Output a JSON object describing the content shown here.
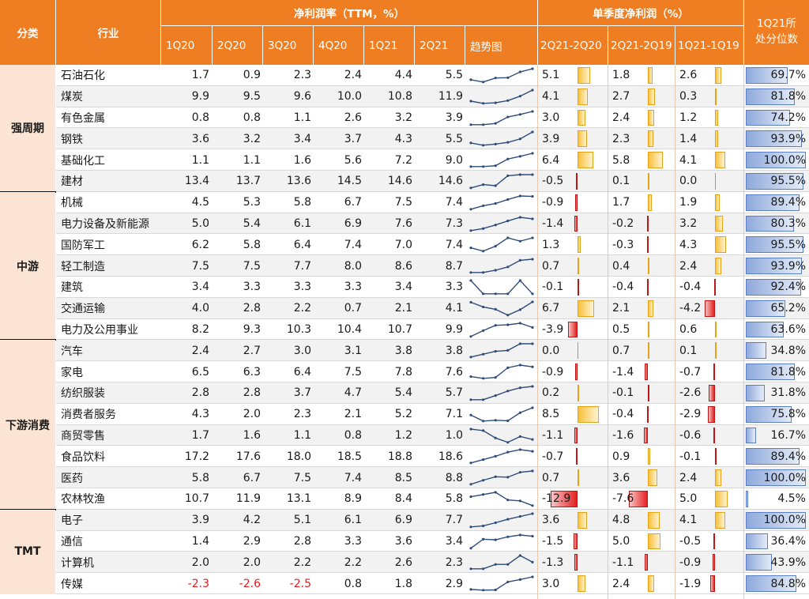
{
  "header": {
    "category": "分类",
    "industry": "行业",
    "group_ttm": "净利润率（TTM，%）",
    "group_quarter": "单季度净利润（%）",
    "quarters": [
      "1Q20",
      "2Q20",
      "3Q20",
      "4Q20",
      "1Q21",
      "2Q21"
    ],
    "trend": "趋势图",
    "comparisons": [
      "2Q21-2Q20",
      "2Q21-2Q19",
      "1Q21-1Q19"
    ],
    "percentile_line1": "1Q21所",
    "percentile_line2": "处分位数"
  },
  "categories": [
    {
      "name": "强周期",
      "rows": 6
    },
    {
      "name": "中游",
      "rows": 7
    },
    {
      "name": "下游消费",
      "rows": 8
    },
    {
      "name": "TMT",
      "rows": 4
    }
  ],
  "rows": [
    {
      "industry": "石油石化",
      "ttm": [
        "1.7",
        "0.9",
        "2.3",
        "2.4",
        "4.4",
        "5.5"
      ],
      "cmp": [
        "5.1",
        "1.8",
        "2.6"
      ],
      "pct": "69.7%"
    },
    {
      "industry": "煤炭",
      "ttm": [
        "9.9",
        "9.5",
        "9.6",
        "10.0",
        "10.8",
        "11.9"
      ],
      "cmp": [
        "4.1",
        "2.7",
        "0.3"
      ],
      "pct": "81.8%"
    },
    {
      "industry": "有色金属",
      "ttm": [
        "0.8",
        "0.8",
        "1.1",
        "2.6",
        "3.2",
        "3.9"
      ],
      "cmp": [
        "3.0",
        "2.4",
        "1.2"
      ],
      "pct": "74.2%"
    },
    {
      "industry": "钢铁",
      "ttm": [
        "3.6",
        "3.2",
        "3.4",
        "3.7",
        "4.3",
        "5.5"
      ],
      "cmp": [
        "3.9",
        "2.3",
        "1.4"
      ],
      "pct": "93.9%"
    },
    {
      "industry": "基础化工",
      "ttm": [
        "1.1",
        "1.1",
        "1.6",
        "5.6",
        "7.2",
        "9.0"
      ],
      "cmp": [
        "6.4",
        "5.8",
        "4.1"
      ],
      "pct": "100.0%"
    },
    {
      "industry": "建材",
      "ttm": [
        "13.4",
        "13.7",
        "13.6",
        "14.5",
        "14.6",
        "14.6"
      ],
      "cmp": [
        "-0.5",
        "0.1",
        "0.0"
      ],
      "pct": "95.5%"
    },
    {
      "industry": "机械",
      "ttm": [
        "4.5",
        "5.3",
        "5.8",
        "6.7",
        "7.5",
        "7.4"
      ],
      "cmp": [
        "-0.9",
        "1.7",
        "1.9"
      ],
      "pct": "89.4%"
    },
    {
      "industry": "电力设备及新能源",
      "ttm": [
        "5.0",
        "5.4",
        "6.1",
        "6.9",
        "7.6",
        "7.3"
      ],
      "cmp": [
        "-1.4",
        "-0.2",
        "3.2"
      ],
      "pct": "80.3%"
    },
    {
      "industry": "国防军工",
      "ttm": [
        "6.2",
        "5.8",
        "6.4",
        "7.4",
        "7.0",
        "7.4"
      ],
      "cmp": [
        "1.3",
        "-0.3",
        "4.3"
      ],
      "pct": "95.5%"
    },
    {
      "industry": "轻工制造",
      "ttm": [
        "7.5",
        "7.5",
        "7.7",
        "8.0",
        "8.6",
        "8.7"
      ],
      "cmp": [
        "0.7",
        "0.4",
        "2.4"
      ],
      "pct": "93.9%"
    },
    {
      "industry": "建筑",
      "ttm": [
        "3.4",
        "3.3",
        "3.3",
        "3.3",
        "3.4",
        "3.3"
      ],
      "cmp": [
        "-0.1",
        "-0.4",
        "-0.4"
      ],
      "pct": "92.4%"
    },
    {
      "industry": "交通运输",
      "ttm": [
        "4.0",
        "2.8",
        "2.2",
        "0.7",
        "2.1",
        "4.1"
      ],
      "cmp": [
        "6.7",
        "2.1",
        "-4.2"
      ],
      "pct": "65.2%"
    },
    {
      "industry": "电力及公用事业",
      "ttm": [
        "8.2",
        "9.3",
        "10.3",
        "10.4",
        "10.7",
        "9.9"
      ],
      "cmp": [
        "-3.9",
        "0.5",
        "0.6"
      ],
      "pct": "63.6%"
    },
    {
      "industry": "汽车",
      "ttm": [
        "2.4",
        "2.7",
        "3.0",
        "3.1",
        "3.8",
        "3.8"
      ],
      "cmp": [
        "0.0",
        "0.7",
        "0.1"
      ],
      "pct": "34.8%"
    },
    {
      "industry": "家电",
      "ttm": [
        "6.5",
        "6.3",
        "6.4",
        "7.5",
        "7.8",
        "7.6"
      ],
      "cmp": [
        "-0.9",
        "-1.4",
        "-0.7"
      ],
      "pct": "81.8%"
    },
    {
      "industry": "纺织服装",
      "ttm": [
        "2.8",
        "2.8",
        "3.7",
        "4.7",
        "5.4",
        "5.7"
      ],
      "cmp": [
        "0.2",
        "-0.1",
        "-2.6"
      ],
      "pct": "31.8%"
    },
    {
      "industry": "消费者服务",
      "ttm": [
        "4.3",
        "2.0",
        "2.3",
        "2.1",
        "5.2",
        "7.1"
      ],
      "cmp": [
        "8.5",
        "-0.4",
        "-2.9"
      ],
      "pct": "75.8%"
    },
    {
      "industry": "商贸零售",
      "ttm": [
        "1.7",
        "1.6",
        "1.1",
        "0.8",
        "1.2",
        "1.0"
      ],
      "cmp": [
        "-1.1",
        "-1.6",
        "-0.6"
      ],
      "pct": "16.7%"
    },
    {
      "industry": "食品饮料",
      "ttm": [
        "17.2",
        "17.6",
        "18.0",
        "18.5",
        "18.8",
        "18.6"
      ],
      "cmp": [
        "-0.7",
        "0.9",
        "-0.1"
      ],
      "pct": "89.4%"
    },
    {
      "industry": "医药",
      "ttm": [
        "5.8",
        "6.7",
        "7.5",
        "7.4",
        "8.5",
        "8.8"
      ],
      "cmp": [
        "0.7",
        "3.6",
        "2.4"
      ],
      "pct": "100.0%"
    },
    {
      "industry": "农林牧渔",
      "ttm": [
        "10.7",
        "11.9",
        "13.1",
        "8.9",
        "8.4",
        "5.8"
      ],
      "cmp": [
        "-12.9",
        "-7.6",
        "5.0"
      ],
      "pct": "4.5%"
    },
    {
      "industry": "电子",
      "ttm": [
        "3.9",
        "4.2",
        "5.1",
        "6.1",
        "6.9",
        "7.7"
      ],
      "cmp": [
        "3.6",
        "4.8",
        "4.1"
      ],
      "pct": "100.0%"
    },
    {
      "industry": "通信",
      "ttm": [
        "1.4",
        "2.9",
        "2.8",
        "3.3",
        "3.6",
        "3.4"
      ],
      "cmp": [
        "-1.5",
        "5.0",
        "-0.5"
      ],
      "pct": "36.4%"
    },
    {
      "industry": "计算机",
      "ttm": [
        "2.0",
        "2.0",
        "2.2",
        "2.2",
        "2.6",
        "2.3"
      ],
      "cmp": [
        "-1.3",
        "-1.1",
        "-0.9"
      ],
      "pct": "43.9%"
    },
    {
      "industry": "传媒",
      "ttm": [
        "-2.3",
        "-2.6",
        "-2.5",
        "0.8",
        "1.8",
        "2.9"
      ],
      "cmp": [
        "3.0",
        "2.4",
        "-1.9"
      ],
      "pct": "84.8%"
    }
  ],
  "colors": {
    "header_bg": "#ef7d22",
    "category_bg": "#fbe4d3",
    "positive_bar": "#f8c03a",
    "negative_bar": "#e42020",
    "percentile_bar": "#8ea9db",
    "negative_text": "#e51b1b",
    "sparkline": "#2f4c7a"
  }
}
